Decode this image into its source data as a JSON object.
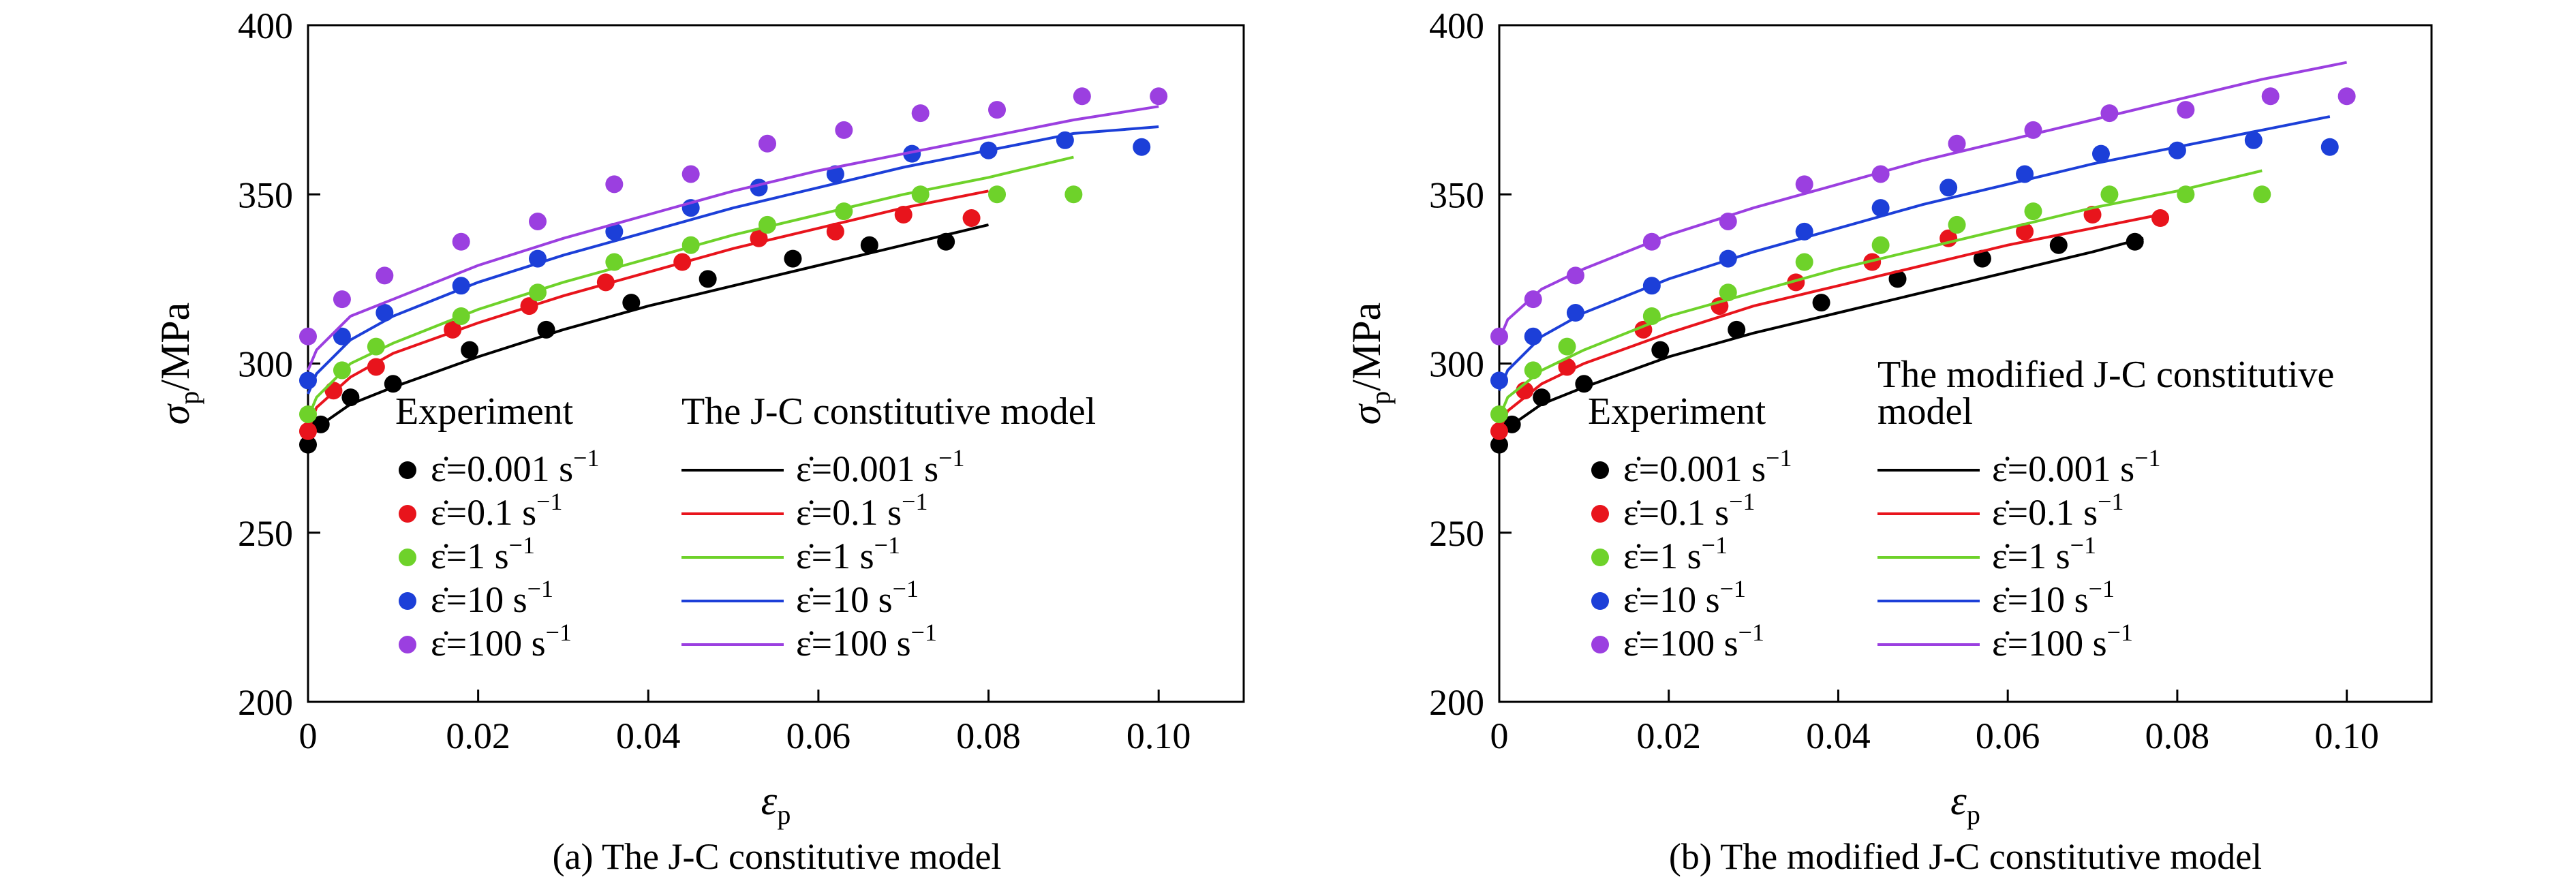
{
  "chart_data": [
    {
      "type": "scatter",
      "caption": "(a) The J-C constitutive model",
      "xlabel": "ε",
      "xlabel_sub": "p",
      "ylabel": "σ",
      "ylabel_sub": "p",
      "ylabel_unit": "/MPa",
      "xlim": [
        0,
        0.11
      ],
      "ylim": [
        200,
        400
      ],
      "xticks": [
        0,
        0.02,
        0.04,
        0.06,
        0.08,
        0.1
      ],
      "xtick_labels": [
        "0",
        "0.02",
        "0.04",
        "0.06",
        "0.08",
        "0.10"
      ],
      "yticks": [
        200,
        250,
        300,
        350,
        400
      ],
      "ytick_labels": [
        "200",
        "250",
        "300",
        "350",
        "400"
      ],
      "legend_experiment_title": "Experiment",
      "legend_model_title": [
        "The J-C constitutive model"
      ],
      "series": [
        {
          "name": "ε̇=0.001 s",
          "rate": "0.001",
          "unit": "s",
          "exp": "−1",
          "color": "#000000",
          "exp_x": [
            0,
            0.0015,
            0.005,
            0.01,
            0.019,
            0.028,
            0.038,
            0.047,
            0.057,
            0.066,
            0.075
          ],
          "exp_y": [
            276,
            282,
            290,
            294,
            304,
            310,
            318,
            325,
            331,
            335,
            336
          ],
          "model_x": [
            0,
            0.001,
            0.005,
            0.01,
            0.02,
            0.03,
            0.04,
            0.05,
            0.06,
            0.07,
            0.08
          ],
          "model_y": [
            276,
            281,
            288,
            293,
            302,
            310,
            317,
            323,
            329,
            335,
            341
          ]
        },
        {
          "name": "ε̇=0.1 s",
          "rate": "0.1",
          "unit": "s",
          "exp": "−1",
          "color": "#e8141c",
          "exp_x": [
            0,
            0.003,
            0.008,
            0.017,
            0.026,
            0.035,
            0.044,
            0.053,
            0.062,
            0.07,
            0.078
          ],
          "exp_y": [
            280,
            292,
            299,
            310,
            317,
            324,
            330,
            337,
            339,
            344,
            343
          ],
          "model_x": [
            0,
            0.001,
            0.005,
            0.01,
            0.02,
            0.03,
            0.04,
            0.05,
            0.06,
            0.07,
            0.08
          ],
          "model_y": [
            280,
            287,
            296,
            303,
            312,
            320,
            327,
            334,
            340,
            346,
            351
          ]
        },
        {
          "name": "ε̇=1 s",
          "rate": "1",
          "unit": "s",
          "exp": "−1",
          "color": "#6ed22a",
          "exp_x": [
            0,
            0.004,
            0.008,
            0.018,
            0.027,
            0.036,
            0.045,
            0.054,
            0.063,
            0.072,
            0.081,
            0.09
          ],
          "exp_y": [
            285,
            298,
            305,
            314,
            321,
            330,
            335,
            341,
            345,
            350,
            350,
            350
          ],
          "model_x": [
            0,
            0.001,
            0.005,
            0.01,
            0.02,
            0.03,
            0.04,
            0.05,
            0.06,
            0.07,
            0.08,
            0.09
          ],
          "model_y": [
            284,
            290,
            300,
            306,
            316,
            324,
            331,
            338,
            344,
            350,
            355,
            361
          ]
        },
        {
          "name": "ε̇=10 s",
          "rate": "10",
          "unit": "s",
          "exp": "−1",
          "color": "#1c3fd8",
          "exp_x": [
            0,
            0.004,
            0.009,
            0.018,
            0.027,
            0.036,
            0.045,
            0.053,
            0.062,
            0.071,
            0.08,
            0.089,
            0.098
          ],
          "exp_y": [
            295,
            308,
            315,
            323,
            331,
            339,
            346,
            352,
            356,
            362,
            363,
            366,
            364
          ],
          "model_x": [
            0,
            0.001,
            0.005,
            0.01,
            0.02,
            0.03,
            0.04,
            0.05,
            0.06,
            0.07,
            0.08,
            0.09,
            0.1
          ],
          "model_y": [
            291,
            297,
            307,
            314,
            324,
            332,
            339,
            346,
            352,
            358,
            363,
            368,
            370
          ]
        },
        {
          "name": "ε̇=100 s",
          "rate": "100",
          "unit": "s",
          "exp": "−1",
          "color": "#9b3fe0",
          "exp_x": [
            0,
            0.004,
            0.009,
            0.018,
            0.027,
            0.036,
            0.045,
            0.054,
            0.063,
            0.072,
            0.081,
            0.091,
            0.1
          ],
          "exp_y": [
            308,
            319,
            326,
            336,
            342,
            353,
            356,
            365,
            369,
            374,
            375,
            379,
            379
          ],
          "model_x": [
            0,
            0.001,
            0.005,
            0.01,
            0.02,
            0.03,
            0.04,
            0.05,
            0.06,
            0.07,
            0.08,
            0.09,
            0.1
          ],
          "model_y": [
            298,
            304,
            314,
            319,
            329,
            337,
            344,
            351,
            357,
            362,
            367,
            372,
            376
          ]
        }
      ]
    },
    {
      "type": "scatter",
      "caption": "(b) The modified J-C constitutive model",
      "xlabel": "ε",
      "xlabel_sub": "p",
      "ylabel": "σ",
      "ylabel_sub": "p",
      "ylabel_unit": "/MPa",
      "xlim": [
        0,
        0.11
      ],
      "ylim": [
        200,
        400
      ],
      "xticks": [
        0,
        0.02,
        0.04,
        0.06,
        0.08,
        0.1
      ],
      "xtick_labels": [
        "0",
        "0.02",
        "0.04",
        "0.06",
        "0.08",
        "0.10"
      ],
      "yticks": [
        200,
        250,
        300,
        350,
        400
      ],
      "ytick_labels": [
        "200",
        "250",
        "300",
        "350",
        "400"
      ],
      "legend_experiment_title": "Experiment",
      "legend_model_title": [
        "The modified J-C constitutive",
        "model"
      ],
      "series": [
        {
          "name": "ε̇=0.001 s",
          "rate": "0.001",
          "unit": "s",
          "exp": "−1",
          "color": "#000000",
          "exp_x": [
            0,
            0.0015,
            0.005,
            0.01,
            0.019,
            0.028,
            0.038,
            0.047,
            0.057,
            0.066,
            0.075
          ],
          "exp_y": [
            276,
            282,
            290,
            294,
            304,
            310,
            318,
            325,
            331,
            335,
            336
          ],
          "model_x": [
            0,
            0.001,
            0.005,
            0.01,
            0.02,
            0.03,
            0.04,
            0.05,
            0.06,
            0.07,
            0.076
          ],
          "model_y": [
            276,
            281,
            288,
            293,
            302,
            309,
            315,
            321,
            327,
            333,
            337
          ]
        },
        {
          "name": "ε̇=0.1 s",
          "rate": "0.1",
          "unit": "s",
          "exp": "−1",
          "color": "#e8141c",
          "exp_x": [
            0,
            0.003,
            0.008,
            0.017,
            0.026,
            0.035,
            0.044,
            0.053,
            0.062,
            0.07,
            0.078
          ],
          "exp_y": [
            280,
            292,
            299,
            310,
            317,
            324,
            330,
            337,
            339,
            344,
            343
          ],
          "model_x": [
            0,
            0.001,
            0.005,
            0.01,
            0.02,
            0.03,
            0.04,
            0.05,
            0.06,
            0.07,
            0.078
          ],
          "model_y": [
            280,
            286,
            294,
            300,
            309,
            317,
            323,
            329,
            335,
            340,
            344
          ]
        },
        {
          "name": "ε̇=1 s",
          "rate": "1",
          "unit": "s",
          "exp": "−1",
          "color": "#6ed22a",
          "exp_x": [
            0,
            0.004,
            0.008,
            0.018,
            0.027,
            0.036,
            0.045,
            0.054,
            0.063,
            0.072,
            0.081,
            0.09
          ],
          "exp_y": [
            285,
            298,
            305,
            314,
            321,
            330,
            335,
            341,
            345,
            350,
            350,
            350
          ],
          "model_x": [
            0,
            0.001,
            0.005,
            0.01,
            0.02,
            0.03,
            0.04,
            0.05,
            0.06,
            0.07,
            0.08,
            0.09
          ],
          "model_y": [
            284,
            290,
            298,
            304,
            314,
            321,
            328,
            334,
            340,
            346,
            351,
            357
          ]
        },
        {
          "name": "ε̇=10 s",
          "rate": "10",
          "unit": "s",
          "exp": "−1",
          "color": "#1c3fd8",
          "exp_x": [
            0,
            0.004,
            0.009,
            0.018,
            0.027,
            0.036,
            0.045,
            0.053,
            0.062,
            0.071,
            0.08,
            0.089,
            0.098
          ],
          "exp_y": [
            295,
            308,
            315,
            323,
            331,
            339,
            346,
            352,
            356,
            362,
            363,
            366,
            364
          ],
          "model_x": [
            0,
            0.001,
            0.005,
            0.01,
            0.02,
            0.03,
            0.04,
            0.05,
            0.06,
            0.07,
            0.08,
            0.09,
            0.098
          ],
          "model_y": [
            292,
            298,
            308,
            315,
            325,
            333,
            340,
            347,
            353,
            359,
            364,
            369,
            373
          ]
        },
        {
          "name": "ε̇=100 s",
          "rate": "100",
          "unit": "s",
          "exp": "−1",
          "color": "#9b3fe0",
          "exp_x": [
            0,
            0.004,
            0.009,
            0.018,
            0.027,
            0.036,
            0.045,
            0.054,
            0.063,
            0.072,
            0.081,
            0.091,
            0.1
          ],
          "exp_y": [
            308,
            319,
            326,
            336,
            342,
            353,
            356,
            365,
            369,
            374,
            375,
            379,
            379
          ],
          "model_x": [
            0,
            0.001,
            0.005,
            0.01,
            0.02,
            0.03,
            0.04,
            0.05,
            0.06,
            0.07,
            0.08,
            0.09,
            0.1
          ],
          "model_y": [
            307,
            313,
            322,
            328,
            338,
            346,
            353,
            360,
            366,
            372,
            378,
            384,
            389
          ]
        }
      ]
    }
  ]
}
